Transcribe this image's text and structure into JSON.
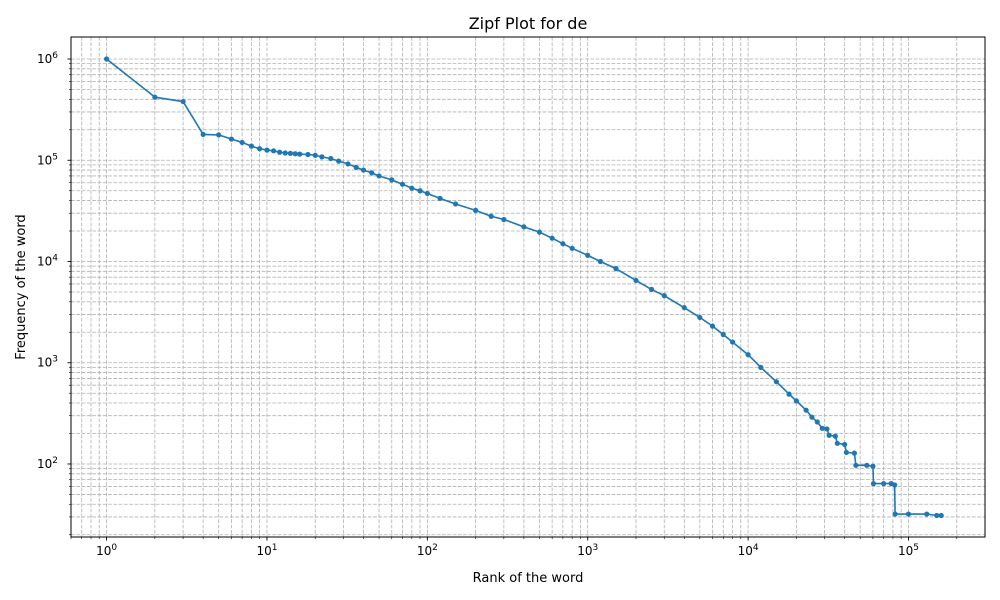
{
  "chart_data": {
    "type": "line",
    "title": "Zipf Plot for de",
    "xlabel": "Rank of the word",
    "ylabel": "Frequency of the word",
    "x_scale": "log",
    "y_scale": "log",
    "xlim": [
      0.6,
      300000
    ],
    "ylim": [
      19,
      1650000
    ],
    "grid": true,
    "grid_which": "both",
    "grid_style": "dashed",
    "x_ticks": [
      {
        "base": "10",
        "exp": "0",
        "value": 1
      },
      {
        "base": "10",
        "exp": "1",
        "value": 10
      },
      {
        "base": "10",
        "exp": "2",
        "value": 100
      },
      {
        "base": "10",
        "exp": "3",
        "value": 1000
      },
      {
        "base": "10",
        "exp": "4",
        "value": 10000
      },
      {
        "base": "10",
        "exp": "5",
        "value": 100000
      }
    ],
    "y_ticks": [
      {
        "base": "10",
        "exp": "2",
        "value": 100
      },
      {
        "base": "10",
        "exp": "3",
        "value": 1000
      },
      {
        "base": "10",
        "exp": "4",
        "value": 10000
      },
      {
        "base": "10",
        "exp": "5",
        "value": 100000
      },
      {
        "base": "10",
        "exp": "6",
        "value": 1000000
      }
    ],
    "series": [
      {
        "color": "#1f77b4",
        "marker": "circle",
        "points": [
          [
            1,
            1000000
          ],
          [
            2,
            420000
          ],
          [
            3,
            380000
          ],
          [
            4,
            180000
          ],
          [
            5,
            178000
          ],
          [
            6,
            162000
          ],
          [
            7,
            150000
          ],
          [
            8,
            138000
          ],
          [
            9,
            130000
          ],
          [
            10,
            126000
          ],
          [
            11,
            124000
          ],
          [
            12,
            120000
          ],
          [
            13,
            118000
          ],
          [
            14,
            117000
          ],
          [
            15,
            116000
          ],
          [
            16,
            115000
          ],
          [
            18,
            114000
          ],
          [
            20,
            112000
          ],
          [
            22,
            108000
          ],
          [
            25,
            104000
          ],
          [
            28,
            98000
          ],
          [
            32,
            92000
          ],
          [
            36,
            85000
          ],
          [
            40,
            80000
          ],
          [
            45,
            75000
          ],
          [
            50,
            70000
          ],
          [
            60,
            64000
          ],
          [
            70,
            58000
          ],
          [
            80,
            53000
          ],
          [
            90,
            50000
          ],
          [
            100,
            47000
          ],
          [
            120,
            42000
          ],
          [
            150,
            37000
          ],
          [
            200,
            32000
          ],
          [
            250,
            28000
          ],
          [
            300,
            26000
          ],
          [
            400,
            22000
          ],
          [
            500,
            19500
          ],
          [
            600,
            17000
          ],
          [
            700,
            15000
          ],
          [
            800,
            13500
          ],
          [
            1000,
            11500
          ],
          [
            1200,
            10000
          ],
          [
            1500,
            8500
          ],
          [
            2000,
            6500
          ],
          [
            2500,
            5300
          ],
          [
            3000,
            4600
          ],
          [
            4000,
            3500
          ],
          [
            5000,
            2800
          ],
          [
            6000,
            2300
          ],
          [
            7000,
            1900
          ],
          [
            8000,
            1600
          ],
          [
            10000,
            1200
          ],
          [
            12000,
            900
          ],
          [
            15000,
            650
          ],
          [
            18000,
            490
          ],
          [
            20000,
            420
          ],
          [
            23000,
            340
          ],
          [
            25000,
            290
          ],
          [
            27000,
            260
          ],
          [
            29000,
            225
          ],
          [
            31000,
            222
          ],
          [
            32000,
            192
          ],
          [
            35000,
            188
          ],
          [
            36000,
            160
          ],
          [
            40000,
            156
          ],
          [
            41000,
            130
          ],
          [
            46000,
            128
          ],
          [
            47000,
            97
          ],
          [
            55000,
            97
          ],
          [
            60000,
            95
          ],
          [
            60500,
            64
          ],
          [
            70000,
            64
          ],
          [
            78000,
            64
          ],
          [
            82000,
            62
          ],
          [
            82500,
            32
          ],
          [
            100000,
            32
          ],
          [
            130000,
            32
          ],
          [
            150000,
            31
          ],
          [
            160000,
            31
          ]
        ]
      }
    ]
  }
}
